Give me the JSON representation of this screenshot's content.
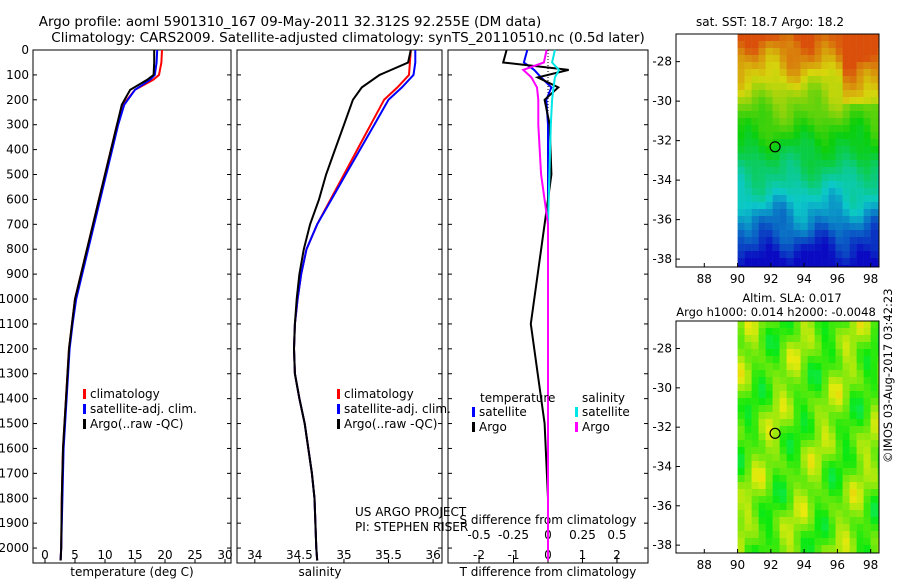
{
  "title_line1": "Argo profile: aoml 5901310_167 09-May-2011 32.312S 92.255E (DM data)",
  "title_line2": "Climatology: CARS2009. Satellite-adjusted climatology: synTS_20110510.nc (0.5d later)",
  "project_line1": "US ARGO PROJECT",
  "project_line2": "PI: STEPHEN RISER",
  "credit": "©IMOS 03-Aug-2017 03:42:23",
  "colors": {
    "red": "#ff0000",
    "blue": "#0000ff",
    "black": "#000000",
    "cyan": "#00e5e5",
    "magenta": "#ff00ff"
  },
  "chart_data": [
    {
      "type": "line",
      "name": "temperature-profile",
      "xlabel": "temperature (deg C)",
      "ylabel": "depth",
      "xlim": [
        -2,
        31
      ],
      "ylim": [
        2060,
        0
      ],
      "xticks": [
        "0",
        "5",
        "10",
        "15",
        "20",
        "25",
        "30"
      ],
      "xtick_values": [
        0,
        5,
        10,
        15,
        20,
        25,
        30
      ],
      "yticks": [
        0,
        100,
        200,
        300,
        400,
        500,
        600,
        700,
        800,
        900,
        1000,
        1100,
        1200,
        1300,
        1400,
        1500,
        1600,
        1700,
        1800,
        1900,
        2000
      ],
      "legend": [
        "climatology",
        "satellite-adj. clim.",
        "Argo(..raw -QC)"
      ],
      "series": [
        {
          "name": "climatology",
          "color": "red",
          "x": [
            19.5,
            19.4,
            19,
            18,
            15,
            13,
            12,
            11,
            10,
            9,
            8,
            7,
            6,
            5,
            4.5,
            4,
            3.5,
            3,
            2.8,
            2.7,
            2.6
          ],
          "y": [
            0,
            50,
            100,
            120,
            160,
            220,
            300,
            400,
            500,
            600,
            700,
            800,
            900,
            1000,
            1100,
            1200,
            1400,
            1600,
            1800,
            2000,
            2050
          ]
        },
        {
          "name": "satellite-adj. clim.",
          "color": "blue",
          "x": [
            18.7,
            18.6,
            18.3,
            17.5,
            15,
            13.2,
            12.2,
            11.2,
            10.2,
            9.2,
            8.2,
            7.2,
            6.2,
            5.2,
            4.6,
            4.1,
            3.6,
            3.1,
            2.9,
            2.7,
            2.6
          ],
          "y": [
            0,
            50,
            100,
            120,
            160,
            220,
            300,
            400,
            500,
            600,
            700,
            800,
            900,
            1000,
            1100,
            1200,
            1400,
            1600,
            1800,
            2000,
            2050
          ]
        },
        {
          "name": "Argo(..raw -QC)",
          "color": "black",
          "x": [
            18.2,
            18.2,
            18.1,
            17,
            14.2,
            12.8,
            12,
            11,
            10,
            9,
            8,
            7,
            6,
            5,
            4.5,
            4,
            3.5,
            3,
            2.8,
            2.7,
            2.6
          ],
          "y": [
            0,
            50,
            100,
            120,
            160,
            220,
            300,
            400,
            500,
            600,
            700,
            800,
            900,
            1000,
            1100,
            1200,
            1400,
            1600,
            1800,
            2000,
            2050
          ]
        }
      ]
    },
    {
      "type": "line",
      "name": "salinity-profile",
      "xlabel": "salinity",
      "ylabel": "depth",
      "xlim": [
        33.8,
        36.1
      ],
      "ylim": [
        2060,
        0
      ],
      "xticks": [
        "34",
        "34.5",
        "35",
        "35.5",
        "36"
      ],
      "xtick_values": [
        34,
        34.5,
        35,
        35.5,
        36
      ],
      "legend": [
        "climatology",
        "satellite-adj. clim.",
        "Argo(..raw -QC)"
      ],
      "series": [
        {
          "name": "climatology",
          "color": "red",
          "x": [
            35.75,
            35.74,
            35.73,
            35.6,
            35.45,
            35.3,
            35.15,
            35.0,
            34.85,
            34.7,
            34.58,
            34.52,
            34.48,
            34.45,
            34.44,
            34.45,
            34.5,
            34.56,
            34.6,
            34.64,
            34.67,
            34.69,
            34.7
          ],
          "y": [
            0,
            50,
            100,
            150,
            200,
            300,
            400,
            500,
            600,
            700,
            800,
            900,
            1000,
            1100,
            1200,
            1300,
            1400,
            1500,
            1600,
            1700,
            1800,
            2000,
            2050
          ]
        },
        {
          "name": "satellite-adj. clim.",
          "color": "blue",
          "x": [
            35.8,
            35.8,
            35.78,
            35.65,
            35.5,
            35.34,
            35.18,
            35.02,
            34.86,
            34.7,
            34.58,
            34.52,
            34.48,
            34.45,
            34.44,
            34.45,
            34.5,
            34.56,
            34.6,
            34.64,
            34.67,
            34.69,
            34.7
          ],
          "y": [
            0,
            50,
            100,
            150,
            200,
            300,
            400,
            500,
            600,
            700,
            800,
            900,
            1000,
            1100,
            1200,
            1300,
            1400,
            1500,
            1600,
            1700,
            1800,
            2000,
            2050
          ]
        },
        {
          "name": "Argo(..raw -QC)",
          "color": "black",
          "x": [
            35.75,
            35.72,
            35.4,
            35.2,
            35.1,
            35.0,
            34.9,
            34.8,
            34.72,
            34.62,
            34.55,
            34.5,
            34.47,
            34.45,
            34.44,
            34.45,
            34.5,
            34.56,
            34.6,
            34.64,
            34.67,
            34.69,
            34.7
          ],
          "y": [
            0,
            50,
            100,
            150,
            200,
            300,
            400,
            500,
            600,
            700,
            800,
            900,
            1000,
            1100,
            1200,
            1300,
            1400,
            1500,
            1600,
            1700,
            1800,
            2000,
            2050
          ]
        }
      ]
    },
    {
      "type": "line",
      "name": "difference-profile",
      "xlabel": "T difference from climatology",
      "xlabel_top": "S difference from climatology",
      "xticks": [
        "-2",
        "-1",
        "0",
        "1",
        "2"
      ],
      "xtick_values": [
        -2,
        -1,
        0,
        1,
        2
      ],
      "sticks": [
        "-0.5",
        "-0.25",
        "0",
        "0.25",
        "0.5"
      ],
      "stick_values": [
        -0.5,
        -0.25,
        0,
        0.25,
        0.5
      ],
      "xlim": [
        -2.9,
        2.9
      ],
      "ylim": [
        2060,
        0
      ],
      "legend_title_t": "temperature",
      "legend_title_s": "salinity",
      "legend": [
        "satellite",
        "Argo",
        "satellite",
        "Argo"
      ],
      "series": [
        {
          "name": "T satellite",
          "color": "blue",
          "x": [
            -0.6,
            -0.7,
            -0.4,
            -0.2,
            0.1,
            -0.05,
            0,
            0,
            0,
            0,
            0,
            0,
            0,
            0,
            0
          ],
          "y": [
            0,
            50,
            80,
            110,
            150,
            200,
            300,
            500,
            700,
            900,
            1100,
            1300,
            1500,
            1800,
            2050
          ]
        },
        {
          "name": "T Argo",
          "color": "black",
          "x": [
            -1.2,
            -1.3,
            0.6,
            -0.3,
            0.3,
            -0.1,
            0.05,
            0.1,
            -0.1,
            -0.3,
            -0.5,
            -0.3,
            -0.1,
            0,
            0
          ],
          "y": [
            0,
            50,
            80,
            110,
            150,
            200,
            300,
            500,
            700,
            900,
            1100,
            1300,
            1500,
            1800,
            2050
          ]
        },
        {
          "name": "S satellite",
          "color": "cyan",
          "x": [
            0.05,
            0.03,
            0.08,
            0.05,
            0.04,
            0.03,
            0.02,
            0.01,
            0,
            0,
            0,
            0,
            0,
            0,
            0
          ],
          "y": [
            0,
            50,
            80,
            110,
            150,
            200,
            300,
            500,
            700,
            900,
            1100,
            1300,
            1500,
            1800,
            2050
          ]
        },
        {
          "name": "S Argo",
          "color": "magenta",
          "x": [
            -0.01,
            -0.03,
            -0.18,
            -0.12,
            -0.08,
            -0.07,
            -0.07,
            -0.05,
            0,
            0,
            0,
            0,
            0,
            0,
            0
          ],
          "y": [
            0,
            50,
            80,
            110,
            150,
            200,
            300,
            500,
            700,
            900,
            1100,
            1300,
            1500,
            1800,
            2050
          ]
        }
      ]
    },
    {
      "type": "heatmap",
      "name": "sst-map",
      "title": "sat. SST: 18.7 Argo: 18.2",
      "xticks": [
        "88",
        "90",
        "92",
        "94",
        "96",
        "98"
      ],
      "xtick_values": [
        88,
        90,
        92,
        94,
        96,
        98
      ],
      "yticks": [
        "-28",
        "-30",
        "-32",
        "-34",
        "-36",
        "-38"
      ],
      "ytick_values": [
        -28,
        -30,
        -32,
        -34,
        -36,
        -38
      ],
      "xlim": [
        86.3,
        98.5
      ],
      "ylim": [
        -38.4,
        -26.6
      ],
      "data_xlim": [
        90,
        98.5
      ],
      "marker": {
        "lon": 92.255,
        "lat": -32.312
      }
    },
    {
      "type": "heatmap",
      "name": "sla-map",
      "title_line1": "Altim. SLA: 0.017",
      "title_line2": "Argo h1000: 0.014 h2000: -0.0048",
      "xticks": [
        "88",
        "90",
        "92",
        "94",
        "96",
        "98"
      ],
      "xtick_values": [
        88,
        90,
        92,
        94,
        96,
        98
      ],
      "yticks": [
        "-28",
        "-30",
        "-32",
        "-34",
        "-36",
        "-38"
      ],
      "ytick_values": [
        -28,
        -30,
        -32,
        -34,
        -36,
        -38
      ],
      "xlim": [
        86.3,
        98.5
      ],
      "ylim": [
        -38.4,
        -26.6
      ],
      "data_xlim": [
        90,
        98.5
      ],
      "marker": {
        "lon": 92.255,
        "lat": -32.312
      }
    }
  ]
}
